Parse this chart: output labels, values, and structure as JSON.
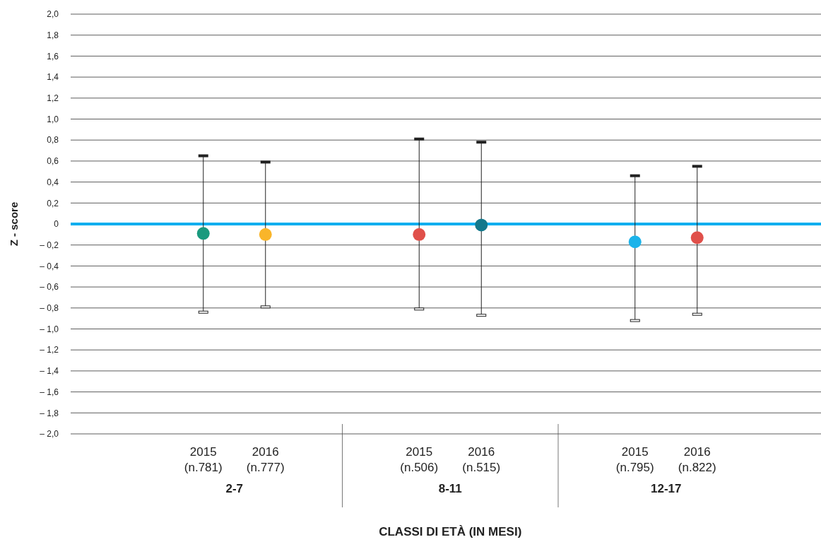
{
  "chart_data": {
    "type": "scatter",
    "xlabel": "CLASSI DI ETÀ (IN MESI)",
    "ylabel": "Z - score",
    "categories": [
      "2015\n(n.781)",
      "2016\n(n.777)",
      "2015\n(n.506)",
      "2016\n(n.515)",
      "2015\n(n.795)",
      "2016\n(n.822)"
    ],
    "values": [
      -0.09,
      -0.1,
      -0.1,
      -0.01,
      -0.17,
      -0.13
    ],
    "colors": [
      "#1a9a7e",
      "#f9b52a",
      "#e0504a",
      "#13788c",
      "#1cb3ea",
      "#e0504a"
    ],
    "errors": [
      [
        -0.84,
        0.65
      ],
      [
        -0.79,
        0.59
      ],
      [
        -0.81,
        0.81
      ],
      [
        -0.87,
        0.78
      ],
      [
        -0.92,
        0.46
      ],
      [
        -0.86,
        0.55
      ]
    ],
    "annotations": [
      "2-7",
      "8-11",
      "12-17"
    ],
    "ylim": [
      -2,
      2
    ],
    "yticks": [
      {
        "value": 2,
        "label": "2,0"
      },
      {
        "value": 1.8,
        "label": "1,8"
      },
      {
        "value": 1.6,
        "label": "1,6"
      },
      {
        "value": 1.4,
        "label": "1,4"
      },
      {
        "value": 1.2,
        "label": "1,2"
      },
      {
        "value": 1,
        "label": "1,0"
      },
      {
        "value": 0.8,
        "label": "0,8"
      },
      {
        "value": 0.6,
        "label": "0,6"
      },
      {
        "value": 0.4,
        "label": "0,4"
      },
      {
        "value": 0.2,
        "label": "0,2"
      },
      0,
      {
        "value": -0.2,
        "label": "– 0,2"
      },
      {
        "value": -0.4,
        "label": "– 0,4"
      },
      {
        "value": -0.6,
        "label": "– 0,6"
      },
      {
        "value": -0.8,
        "label": "– 0,8"
      },
      {
        "value": -1,
        "label": "– 1,0"
      },
      {
        "value": -1.2,
        "label": "– 1,2"
      },
      {
        "value": -1.4,
        "label": "– 1,4"
      },
      {
        "value": -1.6,
        "label": "– 1,6"
      },
      {
        "value": -1.8,
        "label": "– 1,8"
      },
      {
        "value": -2,
        "label": "– 2,0"
      }
    ],
    "grid": "y",
    "marker": "circle",
    "ref_lines": [
      {
        "axis": "y",
        "value": 0,
        "color": "#00aeef"
      }
    ]
  }
}
